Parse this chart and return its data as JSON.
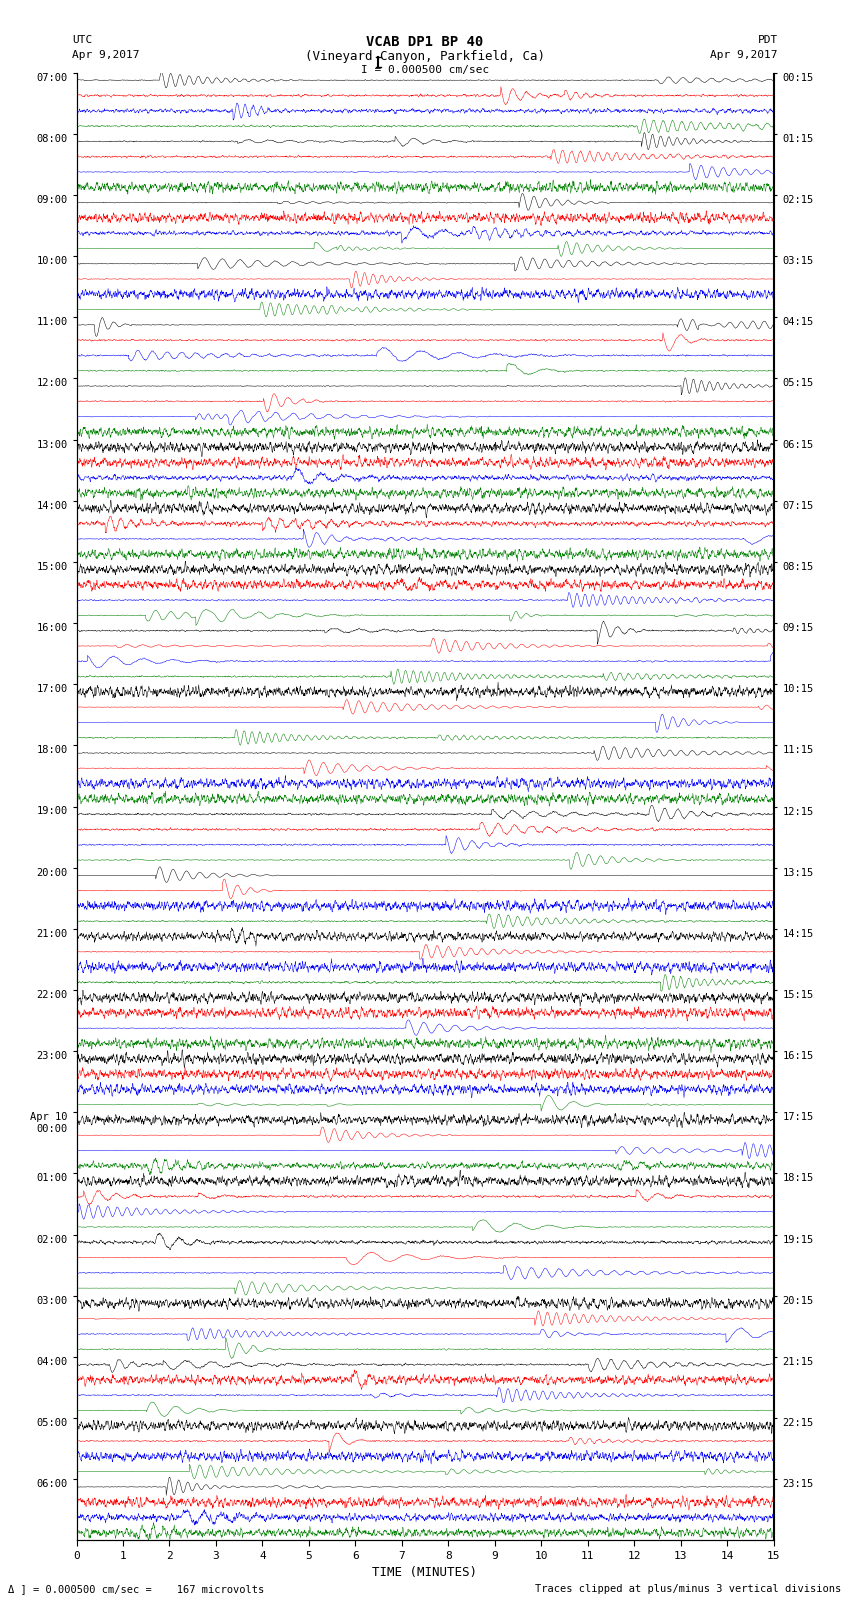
{
  "title_line1": "VCAB DP1 BP 40",
  "title_line2": "(Vineyard Canyon, Parkfield, Ca)",
  "scale_label": "I = 0.000500 cm/sec",
  "left_header": "UTC",
  "left_date": "Apr 9,2017",
  "right_header": "PDT",
  "right_date": "Apr 9,2017",
  "bottom_label": "TIME (MINUTES)",
  "footer_left": "Δ ] = 0.000500 cm/sec =    167 microvolts",
  "footer_right": "Traces clipped at plus/minus 3 vertical divisions",
  "xlabel_ticks": [
    0,
    1,
    2,
    3,
    4,
    5,
    6,
    7,
    8,
    9,
    10,
    11,
    12,
    13,
    14,
    15
  ],
  "utc_times": [
    "07:00",
    "08:00",
    "09:00",
    "10:00",
    "11:00",
    "12:00",
    "13:00",
    "14:00",
    "15:00",
    "16:00",
    "17:00",
    "18:00",
    "19:00",
    "20:00",
    "21:00",
    "22:00",
    "23:00",
    "Apr 10\n00:00",
    "01:00",
    "02:00",
    "03:00",
    "04:00",
    "05:00",
    "06:00"
  ],
  "pdt_times": [
    "00:15",
    "01:15",
    "02:15",
    "03:15",
    "04:15",
    "05:15",
    "06:15",
    "07:15",
    "08:15",
    "09:15",
    "10:15",
    "11:15",
    "12:15",
    "13:15",
    "14:15",
    "15:15",
    "16:15",
    "17:15",
    "18:15",
    "19:15",
    "20:15",
    "21:15",
    "22:15",
    "23:15"
  ],
  "trace_colors": [
    "black",
    "red",
    "blue",
    "green"
  ],
  "bg_color": "white",
  "n_hours": 24,
  "traces_per_hour": 4,
  "figwidth": 8.5,
  "figheight": 16.13
}
